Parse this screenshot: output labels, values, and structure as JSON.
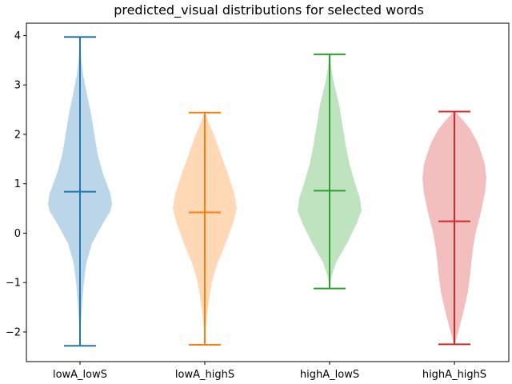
{
  "chart_data": {
    "type": "violin",
    "title": "predicted_visual distributions for selected words",
    "xlabel": "",
    "ylabel": "",
    "ylim": [
      -2.6,
      4.25
    ],
    "yticks": [
      -2,
      -1,
      0,
      1,
      2,
      3,
      4
    ],
    "ytick_labels": [
      "−2",
      "−1",
      "0",
      "1",
      "2",
      "3",
      "4"
    ],
    "categories": [
      "lowA_lowS",
      "lowA_highS",
      "highA_lowS",
      "highA_highS"
    ],
    "grid": false,
    "series": [
      {
        "category": "lowA_lowS",
        "color": "#1f77b4",
        "min": -2.28,
        "max": 3.97,
        "mean": 0.84,
        "density": [
          [
            -2.28,
            0.005
          ],
          [
            -1.8,
            0.03
          ],
          [
            -1.4,
            0.07
          ],
          [
            -1.0,
            0.12
          ],
          [
            -0.6,
            0.2
          ],
          [
            -0.2,
            0.38
          ],
          [
            0.2,
            0.72
          ],
          [
            0.45,
            0.95
          ],
          [
            0.6,
            1.0
          ],
          [
            0.8,
            0.95
          ],
          [
            1.2,
            0.72
          ],
          [
            1.6,
            0.55
          ],
          [
            2.0,
            0.45
          ],
          [
            2.4,
            0.35
          ],
          [
            2.8,
            0.22
          ],
          [
            3.2,
            0.1
          ],
          [
            3.5,
            0.04
          ],
          [
            3.97,
            0.005
          ]
        ]
      },
      {
        "category": "lowA_highS",
        "color": "#ff7f0e",
        "min": -2.26,
        "max": 2.44,
        "mean": 0.42,
        "density": [
          [
            -2.26,
            0.005
          ],
          [
            -1.9,
            0.03
          ],
          [
            -1.5,
            0.1
          ],
          [
            -1.0,
            0.22
          ],
          [
            -0.6,
            0.4
          ],
          [
            -0.2,
            0.66
          ],
          [
            0.2,
            0.88
          ],
          [
            0.5,
            1.0
          ],
          [
            0.8,
            0.92
          ],
          [
            1.2,
            0.72
          ],
          [
            1.6,
            0.5
          ],
          [
            2.0,
            0.28
          ],
          [
            2.2,
            0.15
          ],
          [
            2.44,
            0.01
          ]
        ]
      },
      {
        "category": "highA_lowS",
        "color": "#2ca02c",
        "min": -1.12,
        "max": 3.62,
        "mean": 0.86,
        "density": [
          [
            -1.12,
            0.005
          ],
          [
            -0.9,
            0.05
          ],
          [
            -0.6,
            0.2
          ],
          [
            -0.2,
            0.55
          ],
          [
            0.2,
            0.85
          ],
          [
            0.45,
            1.0
          ],
          [
            0.7,
            0.95
          ],
          [
            1.0,
            0.8
          ],
          [
            1.4,
            0.62
          ],
          [
            1.8,
            0.5
          ],
          [
            2.2,
            0.4
          ],
          [
            2.6,
            0.3
          ],
          [
            3.0,
            0.15
          ],
          [
            3.3,
            0.06
          ],
          [
            3.62,
            0.005
          ]
        ]
      },
      {
        "category": "highA_highS",
        "color": "#d62728",
        "min": -2.25,
        "max": 2.46,
        "mean": 0.24,
        "density": [
          [
            -2.25,
            0.01
          ],
          [
            -2.0,
            0.12
          ],
          [
            -1.6,
            0.28
          ],
          [
            -1.2,
            0.42
          ],
          [
            -0.8,
            0.5
          ],
          [
            -0.4,
            0.56
          ],
          [
            0.0,
            0.66
          ],
          [
            0.4,
            0.82
          ],
          [
            0.8,
            0.95
          ],
          [
            1.1,
            1.0
          ],
          [
            1.4,
            0.95
          ],
          [
            1.8,
            0.75
          ],
          [
            2.1,
            0.5
          ],
          [
            2.3,
            0.25
          ],
          [
            2.46,
            0.02
          ]
        ]
      }
    ]
  }
}
